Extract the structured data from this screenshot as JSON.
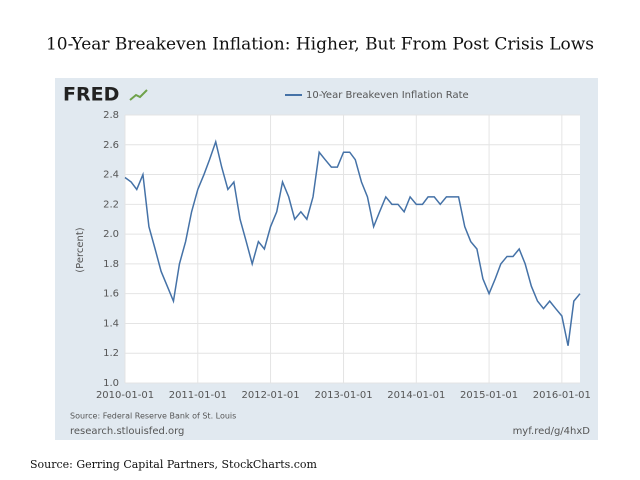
{
  "chart_data": {
    "type": "line",
    "title": "10-Year Breakeven Inflation: Higher, But From Post Crisis Lows",
    "logo": "FRED",
    "ylabel": "(Percent)",
    "source_note": "Source: Federal Reserve Bank of St. Louis",
    "site": "research.stlouisfed.org",
    "short_url": "myf.red/g/4hxD",
    "caption": "Source: Gerring Capital Partners, StockCharts.com",
    "x": [
      "2010-01-01",
      "2010-02-01",
      "2010-03-01",
      "2010-04-01",
      "2010-05-01",
      "2010-06-01",
      "2010-07-01",
      "2010-08-01",
      "2010-09-01",
      "2010-10-01",
      "2010-11-01",
      "2010-12-01",
      "2011-01-01",
      "2011-02-01",
      "2011-03-01",
      "2011-04-01",
      "2011-05-01",
      "2011-06-01",
      "2011-07-01",
      "2011-08-01",
      "2011-09-01",
      "2011-10-01",
      "2011-11-01",
      "2011-12-01",
      "2012-01-01",
      "2012-02-01",
      "2012-03-01",
      "2012-04-01",
      "2012-05-01",
      "2012-06-01",
      "2012-07-01",
      "2012-08-01",
      "2012-09-01",
      "2012-10-01",
      "2012-11-01",
      "2012-12-01",
      "2013-01-01",
      "2013-02-01",
      "2013-03-01",
      "2013-04-01",
      "2013-05-01",
      "2013-06-01",
      "2013-07-01",
      "2013-08-01",
      "2013-09-01",
      "2013-10-01",
      "2013-11-01",
      "2013-12-01",
      "2014-01-01",
      "2014-02-01",
      "2014-03-01",
      "2014-04-01",
      "2014-05-01",
      "2014-06-01",
      "2014-07-01",
      "2014-08-01",
      "2014-09-01",
      "2014-10-01",
      "2014-11-01",
      "2014-12-01",
      "2015-01-01",
      "2015-02-01",
      "2015-03-01",
      "2015-04-01",
      "2015-05-01",
      "2015-06-01",
      "2015-07-01",
      "2015-08-01",
      "2015-09-01",
      "2015-10-01",
      "2015-11-01",
      "2015-12-01",
      "2016-01-01",
      "2016-02-01",
      "2016-03-01",
      "2016-04-01"
    ],
    "series": [
      {
        "name": "10-Year Breakeven Inflation Rate",
        "color": "#4572a7",
        "values": [
          2.38,
          2.35,
          2.3,
          2.4,
          2.05,
          1.9,
          1.75,
          1.65,
          1.55,
          1.8,
          1.95,
          2.15,
          2.3,
          2.4,
          2.5,
          2.62,
          2.45,
          2.3,
          2.35,
          2.1,
          1.95,
          1.8,
          1.95,
          1.9,
          2.05,
          2.15,
          2.35,
          2.25,
          2.1,
          2.15,
          2.1,
          2.25,
          2.55,
          2.5,
          2.45,
          2.45,
          2.55,
          2.55,
          2.5,
          2.35,
          2.25,
          2.05,
          2.15,
          2.25,
          2.2,
          2.2,
          2.15,
          2.25,
          2.2,
          2.2,
          2.25,
          2.25,
          2.2,
          2.25,
          2.25,
          2.25,
          2.05,
          1.95,
          1.9,
          1.7,
          1.6,
          1.7,
          1.8,
          1.85,
          1.85,
          1.9,
          1.8,
          1.65,
          1.55,
          1.5,
          1.55,
          1.5,
          1.45,
          1.25,
          1.55,
          1.6
        ]
      }
    ],
    "xlim": [
      "2010-01-01",
      "2016-04-01"
    ],
    "xticks": [
      "2010-01-01",
      "2011-01-01",
      "2012-01-01",
      "2013-01-01",
      "2014-01-01",
      "2015-01-01",
      "2016-01-01"
    ],
    "ylim": [
      1.0,
      2.8
    ],
    "yticks": [
      {
        "value": 1,
        "label": "1.0"
      },
      1.2,
      1.4,
      1.6,
      1.8,
      {
        "value": 2,
        "label": "2.0"
      },
      2.2,
      2.4,
      2.6,
      2.8
    ],
    "grid": true
  }
}
